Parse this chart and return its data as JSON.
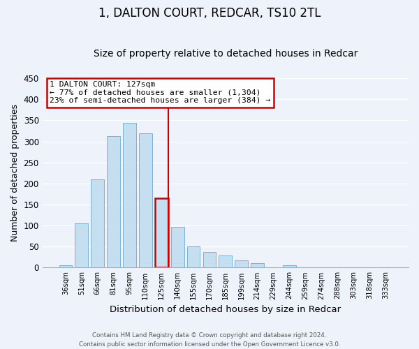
{
  "title": "1, DALTON COURT, REDCAR, TS10 2TL",
  "subtitle": "Size of property relative to detached houses in Redcar",
  "xlabel": "Distribution of detached houses by size in Redcar",
  "ylabel": "Number of detached properties",
  "bar_labels": [
    "36sqm",
    "51sqm",
    "66sqm",
    "81sqm",
    "95sqm",
    "110sqm",
    "125sqm",
    "140sqm",
    "155sqm",
    "170sqm",
    "185sqm",
    "199sqm",
    "214sqm",
    "229sqm",
    "244sqm",
    "259sqm",
    "274sqm",
    "288sqm",
    "303sqm",
    "318sqm",
    "333sqm"
  ],
  "bar_values": [
    6,
    105,
    210,
    313,
    344,
    319,
    165,
    97,
    50,
    37,
    29,
    18,
    10,
    0,
    5,
    0,
    0,
    0,
    0,
    0,
    0
  ],
  "highlight_index": 6,
  "bar_color": "#c5dff0",
  "bar_edge_color": "#7ab3d4",
  "highlight_bar_edge_color": "#cc0000",
  "annotation_line1": "1 DALTON COURT: 127sqm",
  "annotation_line2": "← 77% of detached houses are smaller (1,304)",
  "annotation_line3": "23% of semi-detached houses are larger (384) →",
  "annotation_box_bg": "#ffffff",
  "annotation_box_edge": "#cc0000",
  "footer_line1": "Contains HM Land Registry data © Crown copyright and database right 2024.",
  "footer_line2": "Contains public sector information licensed under the Open Government Licence v3.0.",
  "ylim": [
    0,
    450
  ],
  "yticks": [
    0,
    50,
    100,
    150,
    200,
    250,
    300,
    350,
    400,
    450
  ],
  "background_color": "#eef2fb",
  "grid_color": "#ffffff",
  "title_fontsize": 12,
  "subtitle_fontsize": 10,
  "ylabel_fontsize": 9,
  "xlabel_fontsize": 9.5
}
